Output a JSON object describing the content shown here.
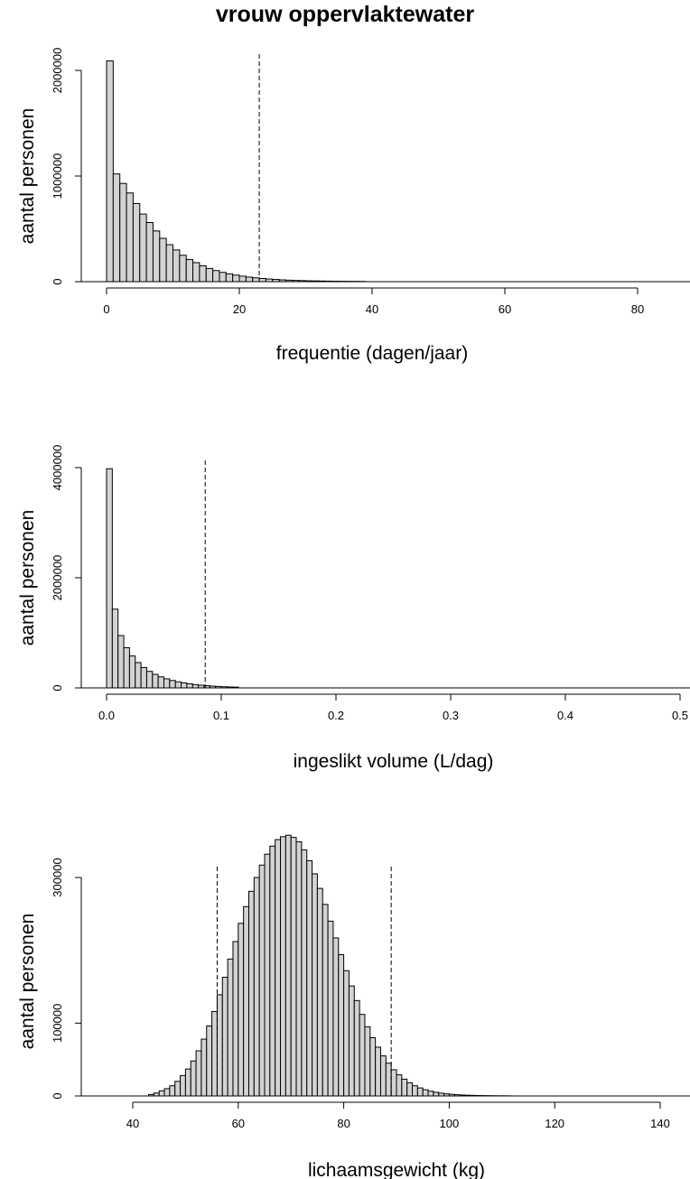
{
  "title": "vrouw oppervlaktewater",
  "chart_data": [
    {
      "type": "bar",
      "subtype": "histogram",
      "xlabel": "frequentie (dagen/jaar)",
      "ylabel": "aantal personen",
      "xticks": [
        0,
        20,
        40,
        60,
        80
      ],
      "yticks": [
        0,
        1000000,
        2000000
      ],
      "ytick_labels": [
        "0",
        "1000000",
        "2000000"
      ],
      "xlim": [
        0,
        88
      ],
      "ylim": [
        0,
        2100000
      ],
      "bin_width": 1,
      "bin_start": 0,
      "values": [
        2090000,
        1020000,
        930000,
        840000,
        740000,
        640000,
        560000,
        480000,
        410000,
        350000,
        300000,
        250000,
        210000,
        180000,
        150000,
        125000,
        105000,
        88000,
        74000,
        62000,
        52000,
        43000,
        36000,
        30000,
        25000,
        21000,
        17000,
        14000,
        12000,
        10000,
        8000,
        7000,
        6000,
        5000,
        4000,
        3500,
        3000,
        2500,
        2000
      ],
      "reference_lines": [
        23
      ]
    },
    {
      "type": "bar",
      "subtype": "histogram",
      "xlabel": "ingeslikt volume (L/dag)",
      "ylabel": "aantal personen",
      "xticks": [
        0.0,
        0.1,
        0.2,
        0.3,
        0.4,
        0.5
      ],
      "xtick_labels": [
        "0.0",
        "0.1",
        "0.2",
        "0.3",
        "0.4",
        "0.5"
      ],
      "yticks": [
        0,
        2000000,
        4000000
      ],
      "ytick_labels": [
        "0",
        "2000000",
        "4000000"
      ],
      "xlim": [
        0,
        0.505
      ],
      "ylim": [
        0,
        4000000
      ],
      "bin_width": 0.005,
      "bin_start": 0,
      "values": [
        3980000,
        1430000,
        950000,
        730000,
        580000,
        460000,
        370000,
        300000,
        245000,
        200000,
        165000,
        135000,
        110000,
        90000,
        74000,
        60000,
        49000,
        40000,
        32000,
        26000,
        21000,
        17000,
        14000
      ],
      "reference_lines": [
        0.086
      ]
    },
    {
      "type": "bar",
      "subtype": "histogram",
      "xlabel": "lichaamsgewicht (kg)",
      "ylabel": "aantal personen",
      "xticks": [
        40,
        60,
        80,
        100,
        120,
        140
      ],
      "yticks": [
        0,
        100000,
        300000
      ],
      "ytick_labels": [
        "0",
        "100000",
        "300000"
      ],
      "xlim": [
        35,
        146
      ],
      "ylim": [
        0,
        360000
      ],
      "bin_width": 1,
      "bin_start": 43,
      "values": [
        2000,
        4000,
        7000,
        10000,
        14000,
        20000,
        28000,
        37000,
        48000,
        62000,
        78000,
        96000,
        116000,
        139000,
        163000,
        188000,
        212000,
        237000,
        260000,
        281000,
        300000,
        317000,
        332000,
        343000,
        352000,
        356000,
        358000,
        355000,
        349000,
        338000,
        323000,
        305000,
        285000,
        263000,
        240000,
        217000,
        194000,
        172000,
        151000,
        131000,
        112000,
        95000,
        80000,
        67000,
        55000,
        45000,
        36000,
        29000,
        23000,
        18000,
        14000,
        11000,
        8500,
        6500,
        5000,
        3800,
        2900,
        2200,
        1700,
        1300,
        1000,
        800,
        600,
        500,
        400,
        300,
        200,
        200,
        100
      ],
      "reference_lines": [
        56,
        89
      ]
    }
  ]
}
